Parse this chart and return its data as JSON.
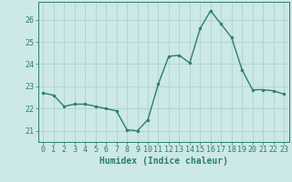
{
  "x": [
    0,
    1,
    2,
    3,
    4,
    5,
    6,
    7,
    8,
    9,
    10,
    11,
    12,
    13,
    14,
    15,
    16,
    17,
    18,
    19,
    20,
    21,
    22,
    23
  ],
  "y": [
    22.7,
    22.6,
    22.1,
    22.2,
    22.2,
    22.1,
    22.0,
    21.9,
    21.05,
    21.0,
    21.5,
    23.1,
    24.35,
    24.4,
    24.05,
    25.6,
    26.4,
    25.8,
    25.2,
    23.75,
    22.85,
    22.85,
    22.8,
    22.65
  ],
  "line_color": "#2e7d6e",
  "marker": "o",
  "marker_size": 2.0,
  "bg_color": "#cce8e8",
  "grid_color": "#aacece",
  "tick_color": "#2e7d6e",
  "xlabel": "Humidex (Indice chaleur)",
  "ylim": [
    20.5,
    26.8
  ],
  "yticks": [
    21,
    22,
    23,
    24,
    25,
    26
  ],
  "xticks": [
    0,
    1,
    2,
    3,
    4,
    5,
    6,
    7,
    8,
    9,
    10,
    11,
    12,
    13,
    14,
    15,
    16,
    17,
    18,
    19,
    20,
    21,
    22,
    23
  ],
  "xlabel_fontsize": 7,
  "tick_fontsize": 6,
  "line_width": 1.0
}
